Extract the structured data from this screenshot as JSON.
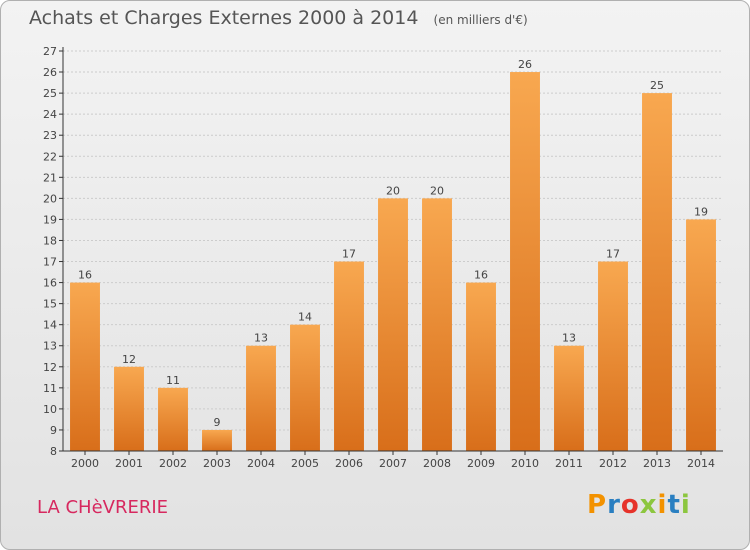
{
  "header": {
    "title": "Achats et Charges Externes 2000 à 2014",
    "unit": "(en milliers d'€)"
  },
  "footer": {
    "place": "LA CHèVRERIE",
    "logo_letters": [
      "P",
      "r",
      "o",
      "x",
      "i",
      "t",
      "i"
    ],
    "logo_colors": [
      "#f39200",
      "#2a7fc1",
      "#e6332a",
      "#8cc63f",
      "#f39200",
      "#2a7fc1",
      "#8cc63f"
    ]
  },
  "colors": {
    "bar_light": "#f8a850",
    "bar_dark": "#d86e1a",
    "grid": "#cccccc",
    "axis": "#333333",
    "place_text": "#d7285f"
  },
  "chart_data": {
    "type": "bar",
    "title": "Achats et Charges Externes 2000 à 2014",
    "unit": "(en milliers d'€)",
    "categories": [
      "2000",
      "2001",
      "2002",
      "2003",
      "2004",
      "2005",
      "2006",
      "2007",
      "2008",
      "2009",
      "2010",
      "2011",
      "2012",
      "2013",
      "2014"
    ],
    "values": [
      16,
      12,
      11,
      9,
      13,
      14,
      17,
      20,
      20,
      16,
      26,
      13,
      17,
      25,
      19
    ],
    "data_labels": [
      "16",
      "12",
      "11",
      "9",
      "13",
      "14",
      "17",
      "20",
      "20",
      "16",
      "26",
      "13",
      "17",
      "25",
      "19"
    ],
    "yticks": [
      "8",
      "9",
      "10",
      "11",
      "12",
      "13",
      "14",
      "15",
      "16",
      "17",
      "18",
      "19",
      "20",
      "21",
      "22",
      "23",
      "24",
      "25",
      "26",
      "27"
    ],
    "ylim": [
      8,
      27
    ],
    "grid": true,
    "legend": "none"
  }
}
